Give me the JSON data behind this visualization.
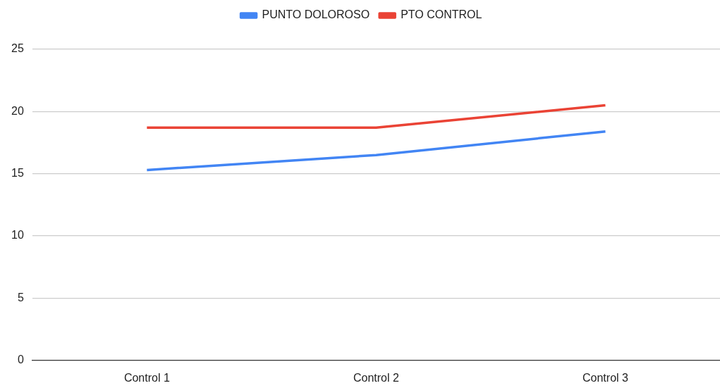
{
  "chart_data": {
    "type": "line",
    "categories": [
      "Control 1",
      "Control 2",
      "Control 3"
    ],
    "series": [
      {
        "name": "PUNTO DOLOROSO",
        "color": "#4285f4",
        "values": [
          15.3,
          16.5,
          18.4
        ]
      },
      {
        "name": "PTO CONTROL",
        "color": "#ea4335",
        "values": [
          18.7,
          18.7,
          20.5
        ]
      }
    ],
    "ylim": [
      0,
      25
    ],
    "yticks": [
      0,
      5,
      10,
      15,
      20,
      25
    ],
    "grid": "y",
    "legend": "top",
    "marker": "none"
  }
}
